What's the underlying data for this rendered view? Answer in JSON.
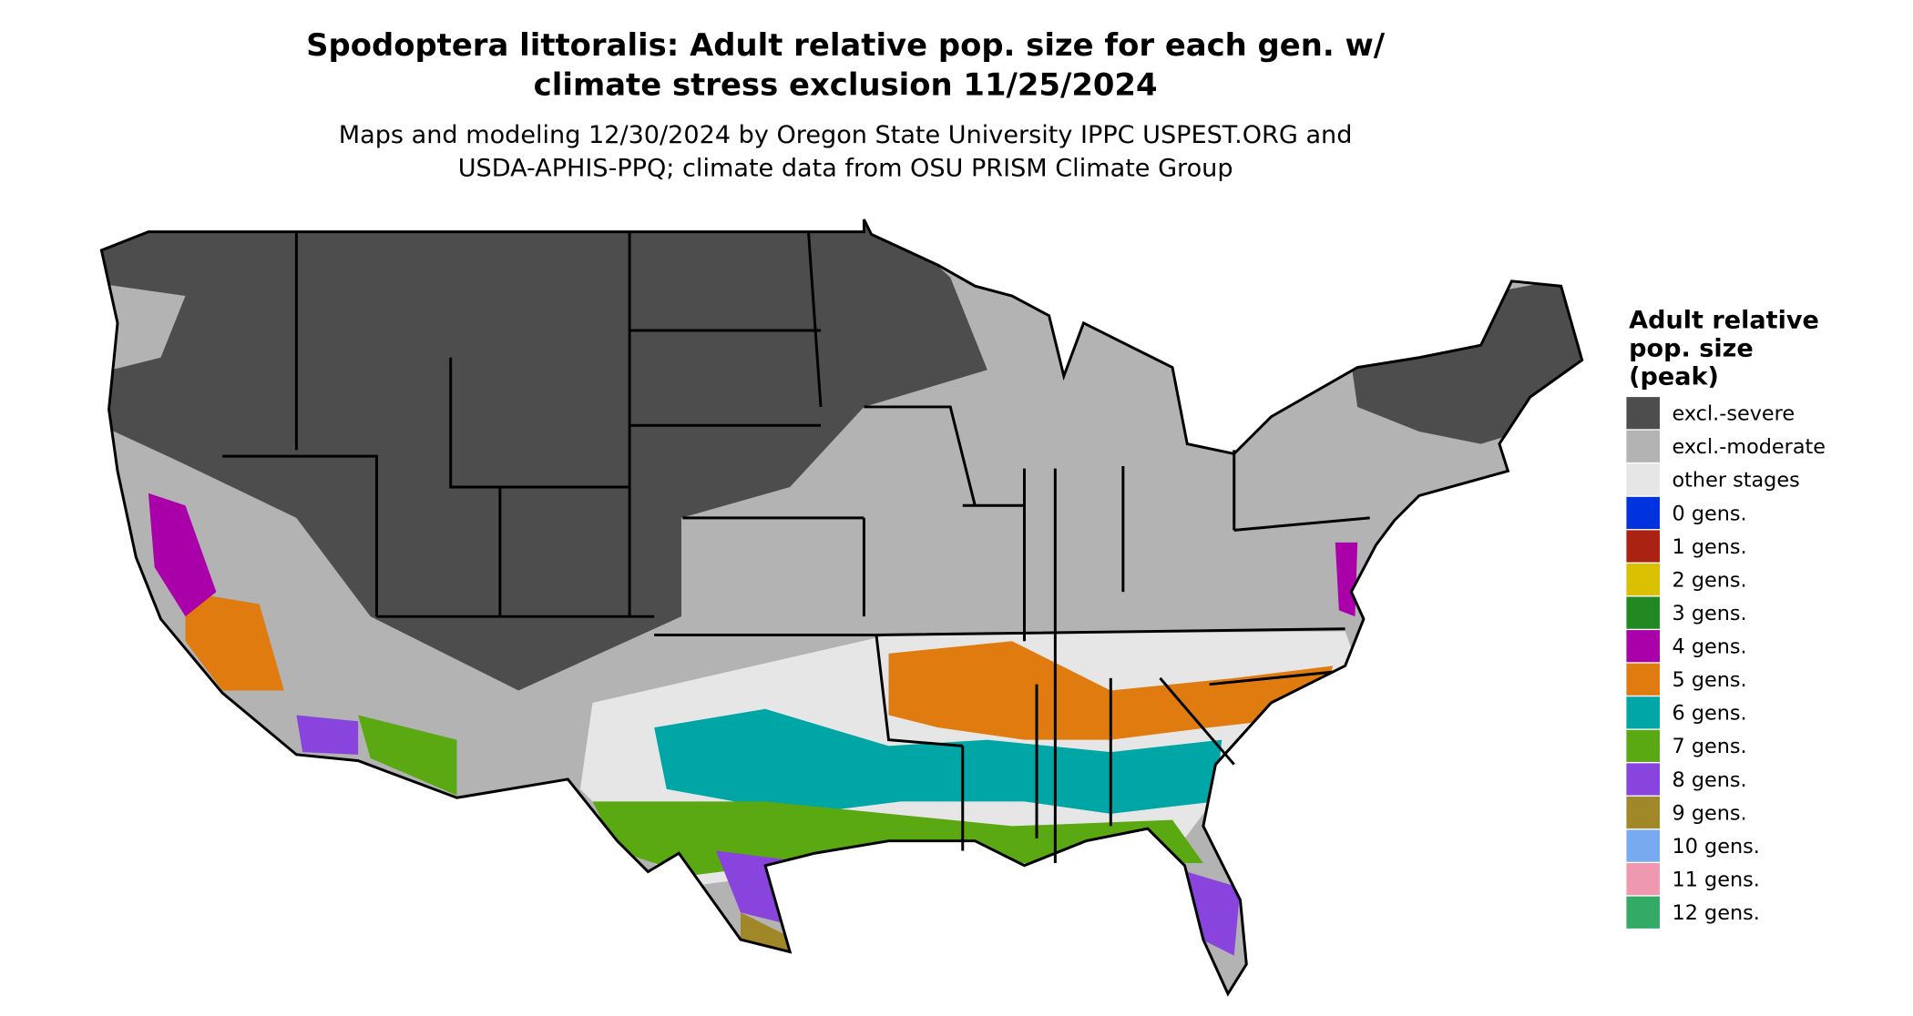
{
  "header": {
    "title": [
      "Spodoptera littoralis: Adult relative pop. size for each gen. w/",
      "climate stress exclusion 11/25/2024"
    ],
    "subtitle": [
      "Maps and modeling 12/30/2024 by Oregon State University IPPC USPEST.ORG and",
      "USDA-APHIS-PPQ; climate data from OSU PRISM Climate Group"
    ]
  },
  "legend": {
    "title": [
      "Adult relative",
      "pop. size",
      "(peak)"
    ],
    "items": [
      {
        "label": "excl.-severe",
        "color": "#4d4d4d"
      },
      {
        "label": "excl.-moderate",
        "color": "#b3b3b3"
      },
      {
        "label": "other stages",
        "color": "#e6e6e6"
      },
      {
        "label": "0 gens.",
        "color": "#0033dd"
      },
      {
        "label": "1 gens.",
        "color": "#aa2211"
      },
      {
        "label": "2 gens.",
        "color": "#d9c000"
      },
      {
        "label": "3 gens.",
        "color": "#228822"
      },
      {
        "label": "4 gens.",
        "color": "#aa00aa"
      },
      {
        "label": "5 gens.",
        "color": "#e07b10"
      },
      {
        "label": "6 gens.",
        "color": "#00a6a6"
      },
      {
        "label": "7 gens.",
        "color": "#5aa812"
      },
      {
        "label": "8 gens.",
        "color": "#8844dd"
      },
      {
        "label": "9 gens.",
        "color": "#a08828"
      },
      {
        "label": "10 gens.",
        "color": "#77aaee"
      },
      {
        "label": "11 gens.",
        "color": "#ee99b0"
      },
      {
        "label": "12 gens.",
        "color": "#33aa66"
      }
    ]
  }
}
